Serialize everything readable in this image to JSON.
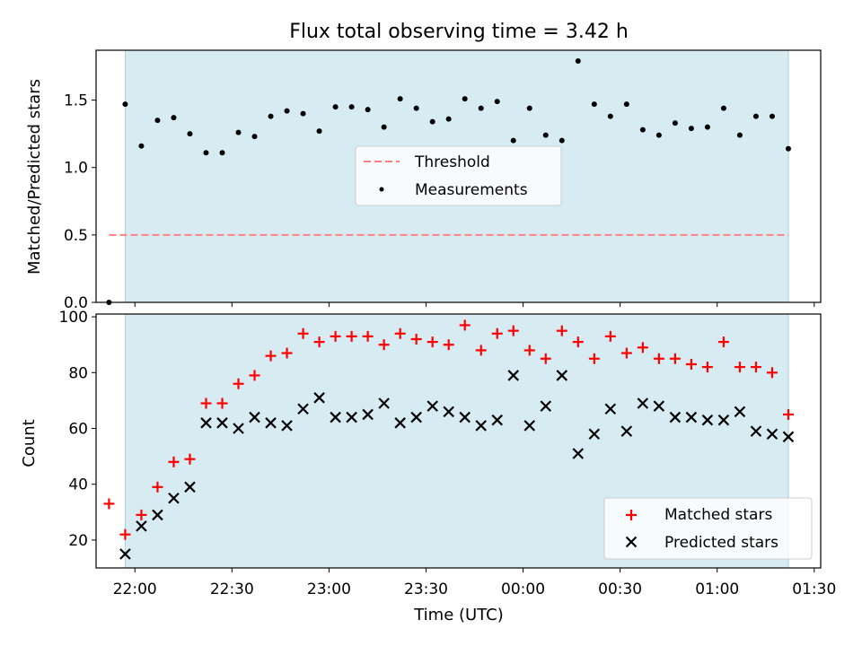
{
  "chart_data": [
    {
      "type": "scatter",
      "panel": "top",
      "title": "Flux total observing time = 3.42 h",
      "xlabel": "",
      "ylabel": "Matched/Predicted stars",
      "xlim": [
        "21:48",
        "01:32"
      ],
      "ylim": [
        0,
        1.87
      ],
      "y_ticks": [
        0.0,
        0.5,
        1.0,
        1.5
      ],
      "y_tick_labels": [
        "0.0",
        "0.5",
        "1.0",
        "1.5"
      ],
      "shaded_interval": [
        "21:57",
        "01:22"
      ],
      "legend": {
        "placement": "center",
        "entries": [
          "Threshold",
          "Measurements"
        ]
      },
      "series": [
        {
          "name": "Threshold",
          "style": "dashed-line",
          "color": "#ff7f7f",
          "x": [
            "21:52",
            "01:22"
          ],
          "y": [
            0.5,
            0.5
          ]
        },
        {
          "name": "Measurements",
          "style": "dot",
          "color": "#000000",
          "x": [
            "21:52",
            "21:57",
            "22:02",
            "22:07",
            "22:12",
            "22:17",
            "22:22",
            "22:27",
            "22:32",
            "22:37",
            "22:42",
            "22:47",
            "22:52",
            "22:57",
            "23:02",
            "23:07",
            "23:12",
            "23:17",
            "23:22",
            "23:27",
            "23:32",
            "23:37",
            "23:42",
            "23:47",
            "23:52",
            "23:57",
            "00:02",
            "00:07",
            "00:12",
            "00:17",
            "00:22",
            "00:27",
            "00:32",
            "00:37",
            "00:42",
            "00:47",
            "00:52",
            "00:57",
            "01:02",
            "01:07",
            "01:12",
            "01:17",
            "01:22"
          ],
          "y": [
            0.0,
            1.47,
            1.16,
            1.35,
            1.37,
            1.25,
            1.11,
            1.11,
            1.26,
            1.23,
            1.38,
            1.42,
            1.4,
            1.27,
            1.45,
            1.45,
            1.43,
            1.3,
            1.51,
            1.44,
            1.34,
            1.36,
            1.51,
            1.44,
            1.49,
            1.2,
            1.44,
            1.24,
            1.2,
            1.79,
            1.47,
            1.38,
            1.47,
            1.28,
            1.24,
            1.33,
            1.29,
            1.3,
            1.44,
            1.24,
            1.38,
            1.38,
            1.14
          ]
        }
      ]
    },
    {
      "type": "scatter",
      "panel": "bottom",
      "title": "",
      "xlabel": "Time (UTC)",
      "ylabel": "Count",
      "xlim": [
        "21:48",
        "01:32"
      ],
      "ylim": [
        10,
        101
      ],
      "y_ticks": [
        20,
        40,
        60,
        80,
        100
      ],
      "y_tick_labels": [
        "20",
        "40",
        "60",
        "80",
        "100"
      ],
      "x_ticks": [
        "22:00",
        "22:30",
        "23:00",
        "23:30",
        "00:00",
        "00:30",
        "01:00",
        "01:30"
      ],
      "shaded_interval": [
        "21:57",
        "01:22"
      ],
      "legend": {
        "placement": "bottom-right",
        "entries": [
          "Matched stars",
          "Predicted stars"
        ]
      },
      "series": [
        {
          "name": "Matched stars",
          "marker": "+",
          "color": "#ff0000",
          "x": [
            "21:52",
            "21:57",
            "22:02",
            "22:07",
            "22:12",
            "22:17",
            "22:22",
            "22:27",
            "22:32",
            "22:37",
            "22:42",
            "22:47",
            "22:52",
            "22:57",
            "23:02",
            "23:07",
            "23:12",
            "23:17",
            "23:22",
            "23:27",
            "23:32",
            "23:37",
            "23:42",
            "23:47",
            "23:52",
            "23:57",
            "00:02",
            "00:07",
            "00:12",
            "00:17",
            "00:22",
            "00:27",
            "00:32",
            "00:37",
            "00:42",
            "00:47",
            "00:52",
            "00:57",
            "01:02",
            "01:07",
            "01:12",
            "01:17",
            "01:22"
          ],
          "y": [
            33,
            22,
            29,
            39,
            48,
            49,
            69,
            69,
            76,
            79,
            86,
            87,
            94,
            91,
            93,
            93,
            93,
            90,
            94,
            92,
            91,
            90,
            97,
            88,
            94,
            95,
            88,
            85,
            95,
            91,
            85,
            93,
            87,
            89,
            85,
            85,
            83,
            82,
            91,
            82,
            82,
            80,
            65
          ]
        },
        {
          "name": "Predicted stars",
          "marker": "x",
          "color": "#000000",
          "x": [
            "21:57",
            "22:02",
            "22:07",
            "22:12",
            "22:17",
            "22:22",
            "22:27",
            "22:32",
            "22:37",
            "22:42",
            "22:47",
            "22:52",
            "22:57",
            "23:02",
            "23:07",
            "23:12",
            "23:17",
            "23:22",
            "23:27",
            "23:32",
            "23:37",
            "23:42",
            "23:47",
            "23:52",
            "23:57",
            "00:02",
            "00:07",
            "00:12",
            "00:17",
            "00:22",
            "00:27",
            "00:32",
            "00:37",
            "00:42",
            "00:47",
            "00:52",
            "00:57",
            "01:02",
            "01:07",
            "01:12",
            "01:17",
            "01:22"
          ],
          "y": [
            15,
            25,
            29,
            35,
            39,
            62,
            62,
            60,
            64,
            62,
            61,
            67,
            71,
            64,
            64,
            65,
            69,
            62,
            64,
            68,
            66,
            64,
            61,
            63,
            79,
            61,
            68,
            79,
            51,
            58,
            67,
            59,
            69,
            68,
            64,
            64,
            63,
            63,
            66,
            59,
            58,
            57
          ]
        }
      ]
    }
  ]
}
